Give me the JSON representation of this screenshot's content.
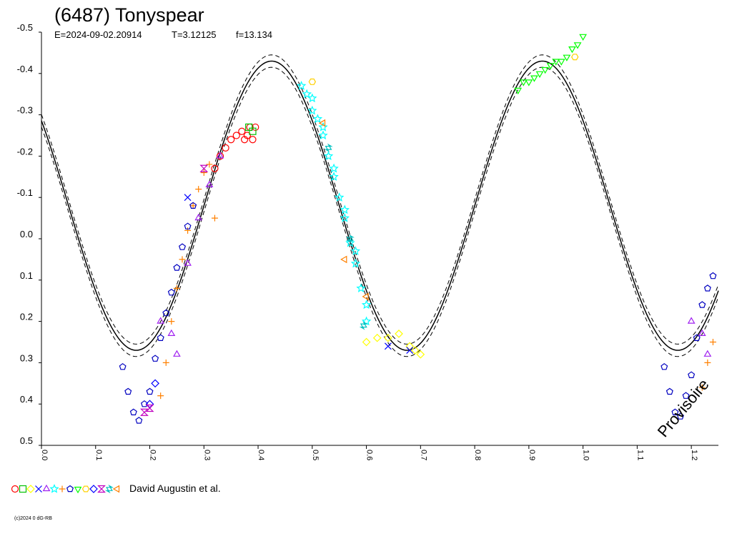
{
  "chart": {
    "title": "(6487) Tonyspear",
    "epoch_label": "E=2024-09-02.20914",
    "period_label": "T=3.12125",
    "freq_label": "f=13.134",
    "legend_label": "David Augustin et al.",
    "copyright": "(c)2024 0 dG-RB",
    "watermark": "Provisoire"
  },
  "chart_data": {
    "type": "scatter",
    "xlabel": "",
    "ylabel": "",
    "xlim": [
      0.0,
      1.25
    ],
    "ylim": [
      0.5,
      -0.5
    ],
    "y_inverted": true,
    "grid": false,
    "legend": "bottom-left",
    "x_ticks": [
      "0.0",
      "0.1",
      "0.2",
      "0.3",
      "0.4",
      "0.5",
      "0.6",
      "0.7",
      "0.8",
      "0.9",
      "1.0",
      "1.1",
      "1.2"
    ],
    "y_ticks": [
      "-0.5",
      "-0.4",
      "-0.3",
      "-0.2",
      "-0.1",
      "0.0",
      "0.1",
      "0.2",
      "0.3",
      "0.4",
      "0.5"
    ],
    "model": {
      "description": "double-wave fit",
      "mean": -0.08,
      "amplitude": 0.35,
      "min_phase": 0.175,
      "envelope": 0.015
    },
    "series": [
      {
        "marker": "circle",
        "color": "#ff0000",
        "points": [
          [
            0.32,
            -0.17
          ],
          [
            0.33,
            -0.2
          ],
          [
            0.34,
            -0.22
          ],
          [
            0.35,
            -0.24
          ],
          [
            0.36,
            -0.25
          ],
          [
            0.37,
            -0.26
          ],
          [
            0.375,
            -0.24
          ],
          [
            0.38,
            -0.25
          ],
          [
            0.385,
            -0.27
          ],
          [
            0.39,
            -0.24
          ],
          [
            0.395,
            -0.27
          ]
        ]
      },
      {
        "marker": "square",
        "color": "#00c000",
        "points": [
          [
            0.383,
            -0.27
          ],
          [
            0.39,
            -0.26
          ]
        ]
      },
      {
        "marker": "diamond",
        "color": "#ffff00",
        "points": [
          [
            0.6,
            0.25
          ],
          [
            0.62,
            0.24
          ],
          [
            0.64,
            0.24
          ],
          [
            0.66,
            0.23
          ],
          [
            0.68,
            0.26
          ],
          [
            0.69,
            0.27
          ],
          [
            0.7,
            0.28
          ]
        ]
      },
      {
        "marker": "cross",
        "color": "#0000ff",
        "points": [
          [
            0.64,
            0.26
          ],
          [
            0.68,
            0.27
          ],
          [
            0.27,
            -0.1
          ]
        ]
      },
      {
        "marker": "triangle-up",
        "color": "#a020f0",
        "points": [
          [
            0.22,
            0.2
          ],
          [
            0.24,
            0.23
          ],
          [
            0.25,
            0.28
          ],
          [
            0.27,
            0.06
          ],
          [
            0.29,
            -0.05
          ],
          [
            0.31,
            -0.13
          ],
          [
            0.33,
            -0.2
          ],
          [
            1.2,
            0.2
          ],
          [
            1.22,
            0.23
          ],
          [
            1.23,
            0.28
          ]
        ]
      },
      {
        "marker": "star",
        "color": "#00ffff",
        "points": [
          [
            0.48,
            -0.37
          ],
          [
            0.49,
            -0.35
          ],
          [
            0.5,
            -0.31
          ],
          [
            0.51,
            -0.29
          ],
          [
            0.52,
            -0.25
          ],
          [
            0.53,
            -0.2
          ],
          [
            0.54,
            -0.15
          ],
          [
            0.55,
            -0.1
          ],
          [
            0.56,
            -0.05
          ],
          [
            0.57,
            0.01
          ],
          [
            0.58,
            0.06
          ],
          [
            0.59,
            0.12
          ],
          [
            0.6,
            0.16
          ],
          [
            0.6,
            0.2
          ],
          [
            0.5,
            -0.34
          ],
          [
            0.52,
            -0.27
          ],
          [
            0.54,
            -0.17
          ],
          [
            0.56,
            -0.07
          ],
          [
            0.58,
            0.03
          ]
        ]
      },
      {
        "marker": "plus",
        "color": "#ff8000",
        "points": [
          [
            0.22,
            0.38
          ],
          [
            0.23,
            0.3
          ],
          [
            0.24,
            0.2
          ],
          [
            0.25,
            0.12
          ],
          [
            0.26,
            0.05
          ],
          [
            0.27,
            -0.02
          ],
          [
            0.28,
            -0.08
          ],
          [
            0.29,
            -0.12
          ],
          [
            0.3,
            -0.16
          ],
          [
            0.31,
            -0.18
          ],
          [
            0.32,
            -0.05
          ],
          [
            1.22,
            0.36
          ],
          [
            1.23,
            0.3
          ],
          [
            1.24,
            0.25
          ]
        ]
      },
      {
        "marker": "pentagon",
        "color": "#0000c0",
        "points": [
          [
            0.15,
            0.31
          ],
          [
            0.16,
            0.37
          ],
          [
            0.17,
            0.42
          ],
          [
            0.18,
            0.44
          ],
          [
            0.19,
            0.4
          ],
          [
            0.2,
            0.37
          ],
          [
            0.21,
            0.29
          ],
          [
            0.22,
            0.24
          ],
          [
            0.23,
            0.18
          ],
          [
            0.24,
            0.13
          ],
          [
            0.25,
            0.07
          ],
          [
            0.26,
            0.02
          ],
          [
            0.27,
            -0.03
          ],
          [
            0.28,
            -0.08
          ],
          [
            1.15,
            0.31
          ],
          [
            1.16,
            0.37
          ],
          [
            1.17,
            0.42
          ],
          [
            1.18,
            0.43
          ],
          [
            1.19,
            0.38
          ],
          [
            1.2,
            0.33
          ],
          [
            1.21,
            0.24
          ],
          [
            1.22,
            0.16
          ],
          [
            1.23,
            0.12
          ],
          [
            1.24,
            0.09
          ]
        ]
      },
      {
        "marker": "triangle-down",
        "color": "#00ff00",
        "points": [
          [
            0.88,
            -0.36
          ],
          [
            0.89,
            -0.38
          ],
          [
            0.9,
            -0.38
          ],
          [
            0.91,
            -0.39
          ],
          [
            0.92,
            -0.4
          ],
          [
            0.93,
            -0.41
          ],
          [
            0.94,
            -0.42
          ],
          [
            0.95,
            -0.43
          ],
          [
            0.96,
            -0.43
          ],
          [
            0.97,
            -0.44
          ],
          [
            0.98,
            -0.46
          ],
          [
            0.99,
            -0.47
          ],
          [
            1.0,
            -0.49
          ]
        ]
      },
      {
        "marker": "hexagon",
        "color": "#ffd000",
        "points": [
          [
            0.985,
            -0.44
          ],
          [
            0.5,
            -0.38
          ]
        ]
      },
      {
        "marker": "diamond",
        "color": "#0000ff",
        "points": [
          [
            0.2,
            0.4
          ],
          [
            0.21,
            0.35
          ]
        ]
      },
      {
        "marker": "hourglass",
        "color": "#c000c0",
        "points": [
          [
            0.19,
            0.42
          ],
          [
            0.2,
            0.41
          ],
          [
            0.3,
            -0.17
          ]
        ]
      },
      {
        "marker": "hexagram",
        "color": "#00c0c0",
        "points": [
          [
            0.53,
            -0.22
          ],
          [
            0.57,
            0.0
          ],
          [
            0.595,
            0.21
          ]
        ]
      },
      {
        "marker": "triangle-left",
        "color": "#ff8000",
        "points": [
          [
            0.52,
            -0.28
          ],
          [
            0.56,
            0.05
          ],
          [
            0.6,
            0.14
          ]
        ]
      }
    ]
  },
  "legend_markers": [
    {
      "icon": "circle-icon",
      "color": "#ff0000"
    },
    {
      "icon": "square-icon",
      "color": "#00c000"
    },
    {
      "icon": "diamond-icon",
      "color": "#ffff00"
    },
    {
      "icon": "cross-icon",
      "color": "#0000ff"
    },
    {
      "icon": "triangle-up-icon",
      "color": "#a020f0"
    },
    {
      "icon": "star-icon",
      "color": "#00ffff"
    },
    {
      "icon": "plus-icon",
      "color": "#ff8000"
    },
    {
      "icon": "pentagon-icon",
      "color": "#0000c0"
    },
    {
      "icon": "triangle-down-icon",
      "color": "#00ff00"
    },
    {
      "icon": "hexagon-icon",
      "color": "#ffd000"
    },
    {
      "icon": "diamond-icon",
      "color": "#0000ff"
    },
    {
      "icon": "hourglass-icon",
      "color": "#c000c0"
    },
    {
      "icon": "hexagram-icon",
      "color": "#00c0c0"
    },
    {
      "icon": "triangle-left-icon",
      "color": "#ff8000"
    }
  ]
}
